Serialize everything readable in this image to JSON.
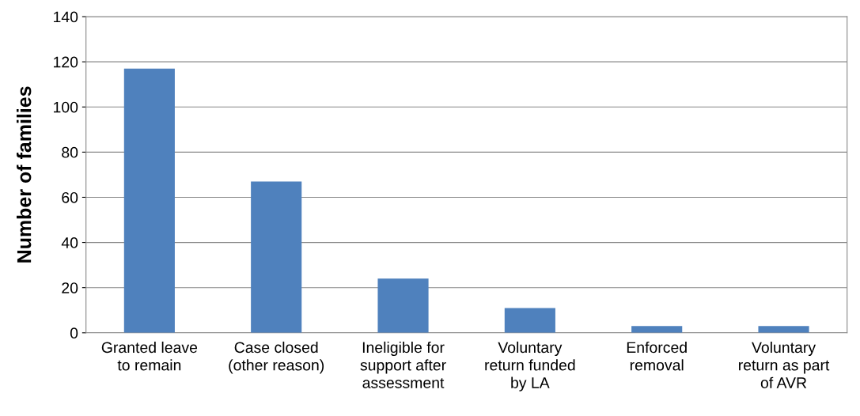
{
  "chart_data": {
    "type": "bar",
    "ylabel": "Number of families",
    "categories": [
      "Granted leave\nto remain",
      "Case closed\n(other reason)",
      "Ineligible for\nsupport after\nassessment",
      "Voluntary\nreturn funded\nby LA",
      "Enforced\nremoval",
      "Voluntary\nreturn as part\nof AVR"
    ],
    "values": [
      117,
      67,
      24,
      11,
      3,
      3
    ],
    "color": "#4f81bd",
    "ylim": [
      0,
      140
    ],
    "yticks": [
      0,
      20,
      40,
      60,
      80,
      100,
      120,
      140
    ],
    "grid": "y",
    "legend": false
  }
}
